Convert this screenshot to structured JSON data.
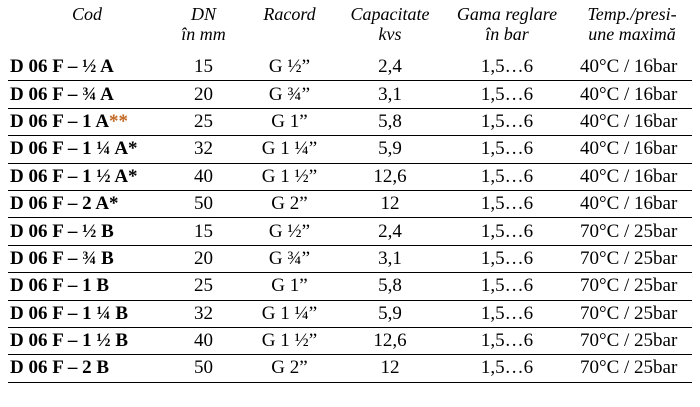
{
  "headers": [
    {
      "line1": "Cod",
      "line2": ""
    },
    {
      "line1": "DN",
      "line2": "în mm"
    },
    {
      "line1": "Racord",
      "line2": ""
    },
    {
      "line1": "Capacitate",
      "line2": "kvs"
    },
    {
      "line1": "Gama reglare",
      "line2": "în bar"
    },
    {
      "line1": "Temp./presi-",
      "line2": "une maximă"
    }
  ],
  "rows": [
    {
      "code": "D 06 F – ½ A",
      "mark": "",
      "dn": "15",
      "racord": "G ½”",
      "kvs": "2,4",
      "range": "1,5…6",
      "temp": "40°C / 16bar"
    },
    {
      "code": "D 06 F – ¾ A",
      "mark": "",
      "dn": "20",
      "racord": "G ¾”",
      "kvs": "3,1",
      "range": "1,5…6",
      "temp": "40°C / 16bar"
    },
    {
      "code": "D 06 F – 1 A",
      "mark": "**",
      "dn": "25",
      "racord": "G 1”",
      "kvs": "5,8",
      "range": "1,5…6",
      "temp": "40°C / 16bar"
    },
    {
      "code": "D 06 F – 1 ¼ A*",
      "mark": "",
      "dn": "32",
      "racord": "G 1 ¼”",
      "kvs": "5,9",
      "range": "1,5…6",
      "temp": "40°C / 16bar"
    },
    {
      "code": "D 06 F – 1 ½ A*",
      "mark": "",
      "dn": "40",
      "racord": "G 1 ½”",
      "kvs": "12,6",
      "range": "1,5…6",
      "temp": "40°C / 16bar"
    },
    {
      "code": "D 06 F – 2 A*",
      "mark": "",
      "dn": "50",
      "racord": "G 2”",
      "kvs": "12",
      "range": "1,5…6",
      "temp": "40°C / 16bar"
    },
    {
      "code": "D 06 F – ½ B",
      "mark": "",
      "dn": "15",
      "racord": "G ½”",
      "kvs": "2,4",
      "range": "1,5…6",
      "temp": "70°C / 25bar"
    },
    {
      "code": "D 06 F – ¾ B",
      "mark": "",
      "dn": "20",
      "racord": "G ¾”",
      "kvs": "3,1",
      "range": "1,5…6",
      "temp": "70°C / 25bar"
    },
    {
      "code": "D 06 F – 1 B",
      "mark": "",
      "dn": "25",
      "racord": "G 1”",
      "kvs": "5,8",
      "range": "1,5…6",
      "temp": "70°C / 25bar"
    },
    {
      "code": "D 06 F – 1 ¼ B",
      "mark": "",
      "dn": "32",
      "racord": "G 1 ¼”",
      "kvs": "5,9",
      "range": "1,5…6",
      "temp": "70°C / 25bar"
    },
    {
      "code": "D 06 F – 1 ½ B",
      "mark": "",
      "dn": "40",
      "racord": "G 1 ½”",
      "kvs": "12,6",
      "range": "1,5…6",
      "temp": "70°C / 25bar"
    },
    {
      "code": "D 06 F – 2 B",
      "mark": "",
      "dn": "50",
      "racord": "G 2”",
      "kvs": "12",
      "range": "1,5…6",
      "temp": "70°C / 25bar"
    }
  ],
  "colors": {
    "mark": "#c0651f",
    "text": "#000000"
  }
}
